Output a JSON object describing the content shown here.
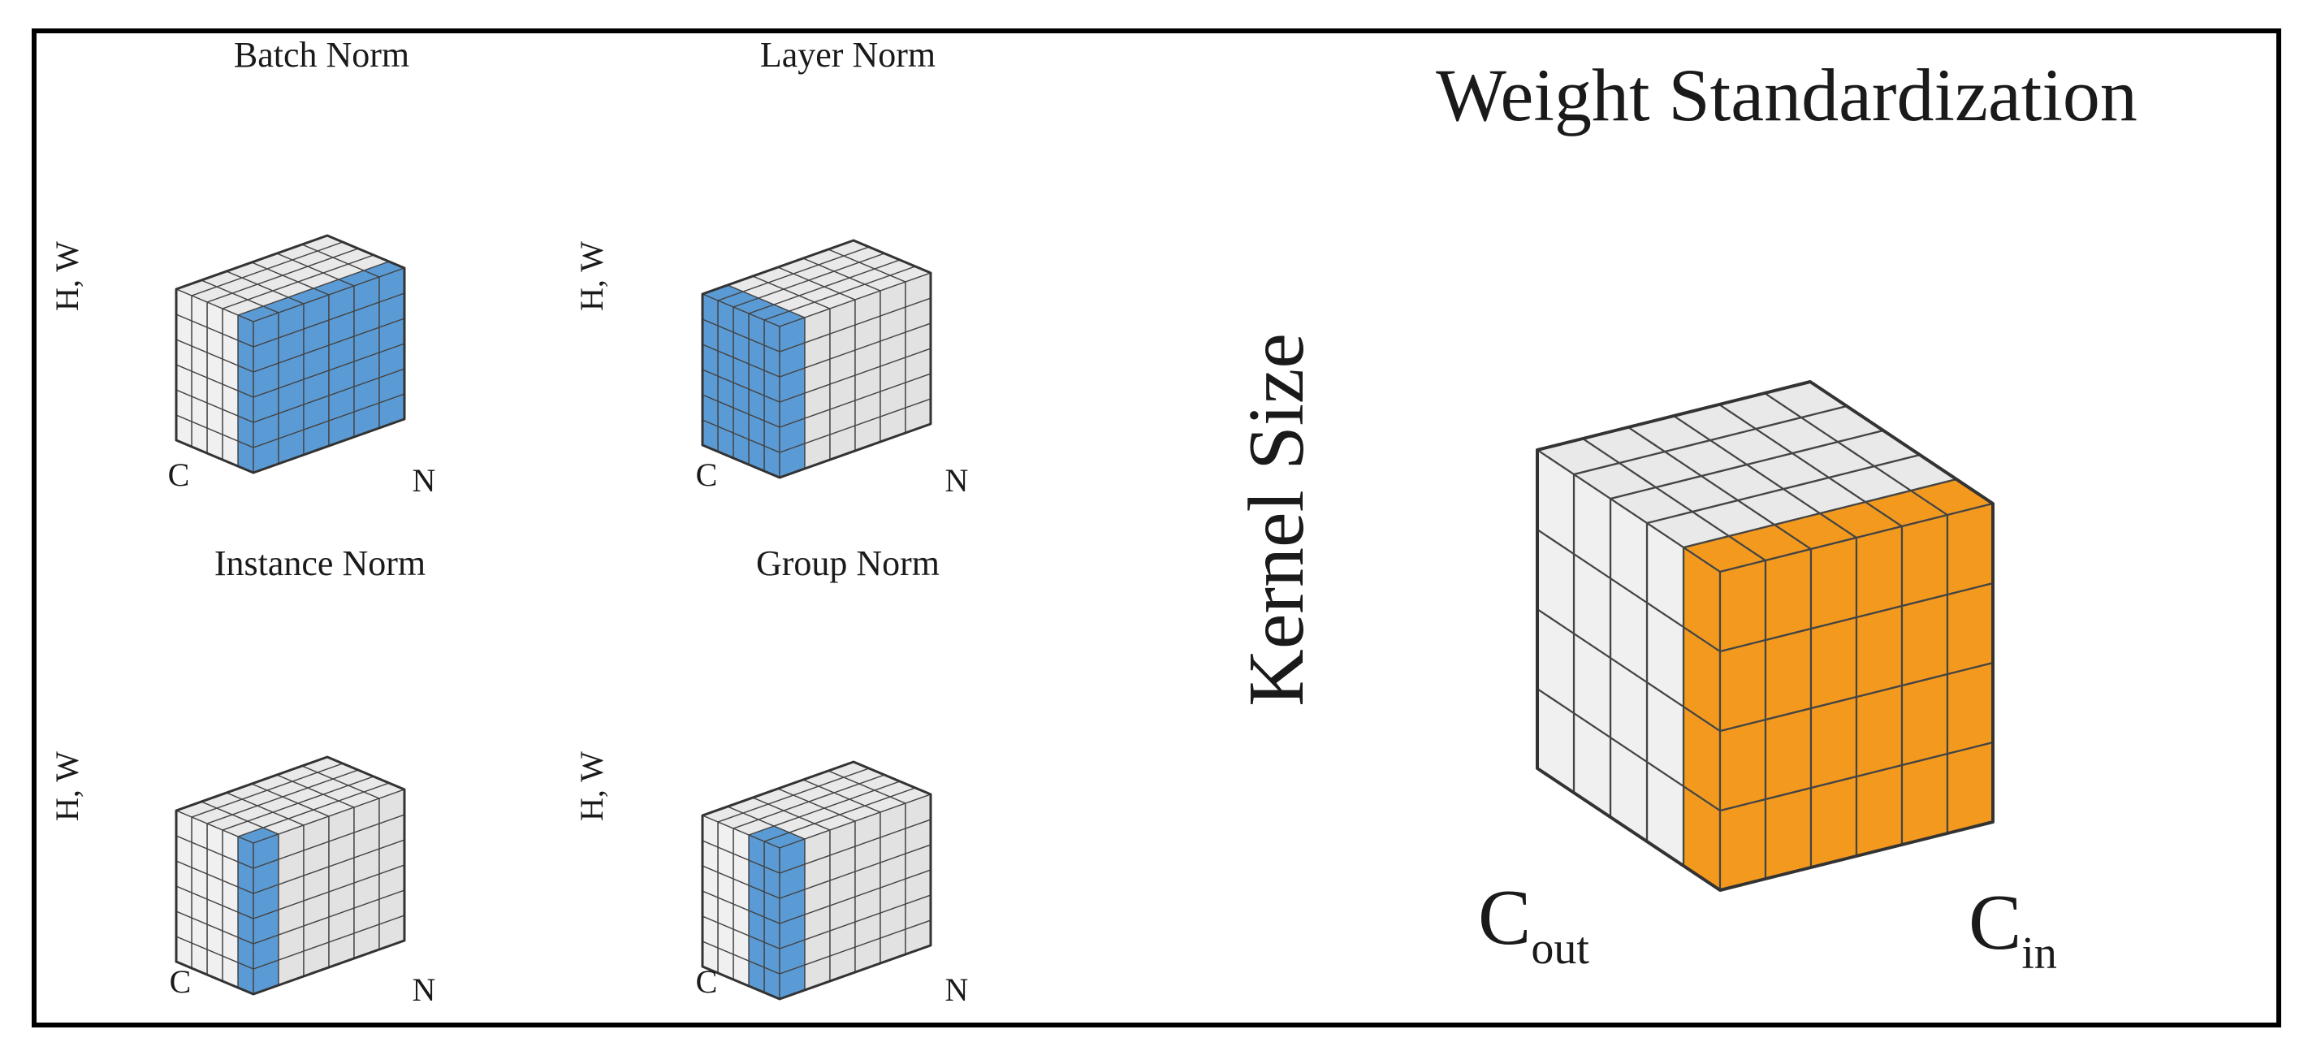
{
  "colors": {
    "background": "#ffffff",
    "border": "#000000",
    "cell_face": "#f0f0f0",
    "cell_top": "#e9e9e9",
    "cell_side": "#e2e2e2",
    "grid_line": "#444444",
    "normalized_blue": "#5b9bd5",
    "normalized_orange": "#f39a1e"
  },
  "panels": {
    "batch": {
      "title": "Batch Norm",
      "hw_label": "H, W",
      "c_label": "C",
      "n_label": "N"
    },
    "layer": {
      "title": "Layer Norm",
      "hw_label": "H, W",
      "c_label": "C",
      "n_label": "N"
    },
    "instance": {
      "title": "Instance Norm",
      "hw_label": "H, W",
      "c_label": "C",
      "n_label": "N"
    },
    "group": {
      "title": "Group Norm",
      "hw_label": "H, W",
      "c_label": "C",
      "n_label": "N"
    }
  },
  "weight_std": {
    "title": "Weight Standardization",
    "kernel_label": "Kernel Size",
    "cout_main": "C",
    "cout_sub": "out",
    "cin_main": "C",
    "cin_sub": "in"
  }
}
